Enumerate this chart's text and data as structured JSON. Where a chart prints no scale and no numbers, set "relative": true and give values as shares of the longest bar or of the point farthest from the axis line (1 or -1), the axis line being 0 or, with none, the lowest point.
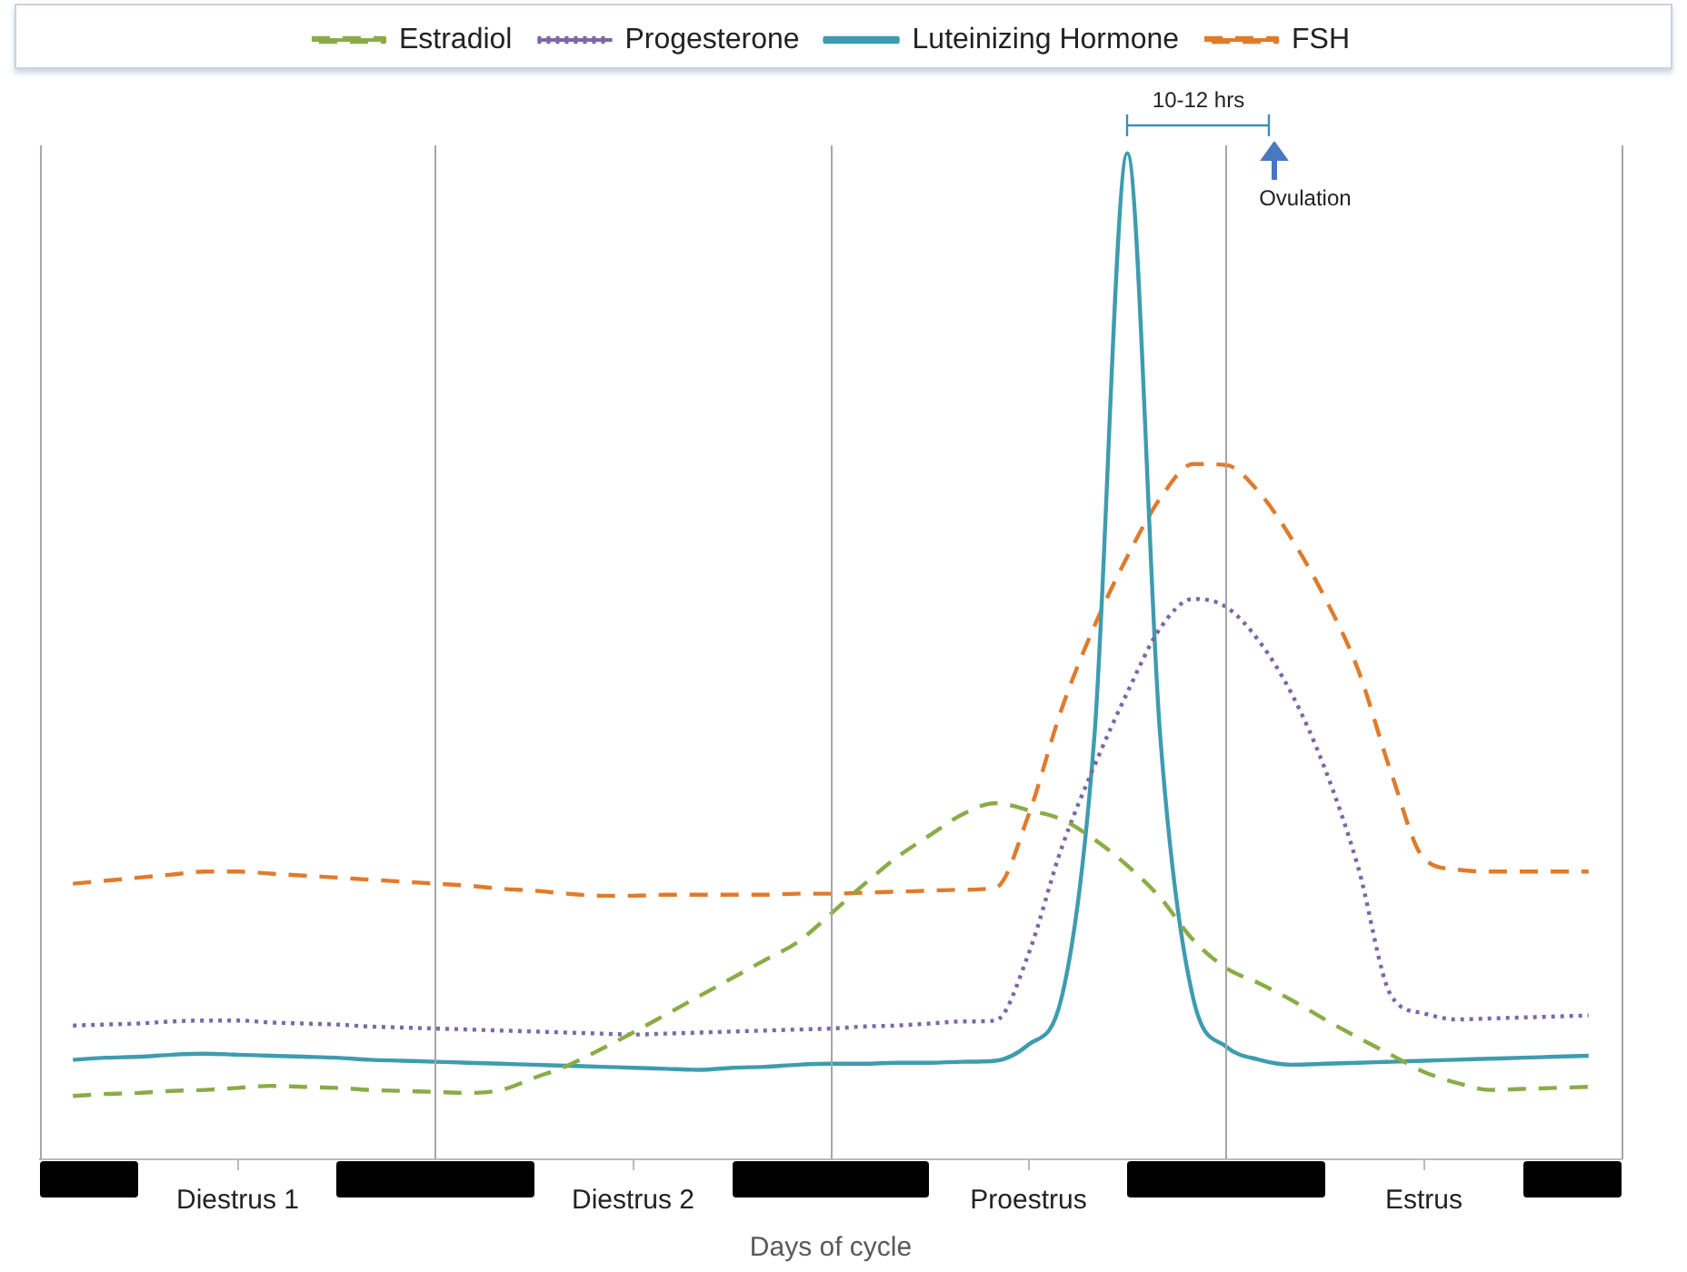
{
  "chart_data": {
    "type": "line",
    "relative": true,
    "xlabel": "Days of cycle",
    "legend": "top",
    "grid": false,
    "categories": [
      null,
      null,
      null,
      null,
      null,
      null,
      "Diestrus 1",
      null,
      null,
      null,
      null,
      null,
      null,
      null,
      null,
      null,
      null,
      null,
      "Diestrus 2",
      null,
      null,
      null,
      null,
      null,
      null,
      null,
      null,
      null,
      null,
      null,
      "Proestrus",
      null,
      null,
      null,
      null,
      null,
      null,
      null,
      null,
      null,
      null,
      null,
      "Estrus",
      null,
      null,
      null,
      null,
      null,
      null
    ],
    "annotations": [
      "10-12 hrs",
      "Ovulation"
    ],
    "series": [
      {
        "name": "Estradiol",
        "color": "#8aac46",
        "line_style": "dashed",
        "values": [
          null,
          0.063,
          0.065,
          0.066,
          0.068,
          0.069,
          0.071,
          0.073,
          0.072,
          0.071,
          0.069,
          0.068,
          0.067,
          0.066,
          0.069,
          0.081,
          0.093,
          0.109,
          0.126,
          0.144,
          0.162,
          0.18,
          0.198,
          0.216,
          0.244,
          0.273,
          0.3,
          0.322,
          0.343,
          0.354,
          0.347,
          0.338,
          0.318,
          0.292,
          0.26,
          0.218,
          0.19,
          0.175,
          0.158,
          0.139,
          0.121,
          0.104,
          0.087,
          0.076,
          0.069,
          0.07,
          0.071,
          0.072,
          null
        ]
      },
      {
        "name": "Progesterone",
        "color": "#7b68a6",
        "line_style": "dotted",
        "values": [
          null,
          0.133,
          0.134,
          0.135,
          0.137,
          0.138,
          0.138,
          0.136,
          0.135,
          0.134,
          0.132,
          0.131,
          0.13,
          0.129,
          0.128,
          0.127,
          0.126,
          0.125,
          0.124,
          0.125,
          0.126,
          0.127,
          0.128,
          0.129,
          0.13,
          0.132,
          0.133,
          0.135,
          0.137,
          0.138,
          0.204,
          0.309,
          0.391,
          0.464,
          0.528,
          0.557,
          0.549,
          0.515,
          0.462,
          0.388,
          0.291,
          0.163,
          0.145,
          0.139,
          0.14,
          0.141,
          0.142,
          0.143,
          null
        ]
      },
      {
        "name": "Luteinizing Hormone",
        "color": "#3e9cb0",
        "line_style": "solid",
        "values": [
          null,
          0.099,
          0.101,
          0.102,
          0.104,
          0.105,
          0.104,
          0.103,
          0.102,
          0.101,
          0.099,
          0.098,
          0.097,
          0.096,
          0.095,
          0.094,
          0.093,
          0.092,
          0.091,
          0.09,
          0.089,
          0.091,
          0.092,
          0.094,
          0.095,
          0.095,
          0.096,
          0.096,
          0.097,
          0.098,
          0.114,
          0.16,
          0.42,
          1,
          0.42,
          0.16,
          0.112,
          0.099,
          0.094,
          0.095,
          0.096,
          0.097,
          0.098,
          0.099,
          0.1,
          0.101,
          0.102,
          0.103,
          null
        ]
      },
      {
        "name": "FSH",
        "color": "#e07b2c",
        "line_style": "dashed",
        "values": [
          null,
          0.274,
          0.277,
          0.28,
          0.283,
          0.286,
          0.286,
          0.284,
          0.282,
          0.28,
          0.278,
          0.276,
          0.274,
          0.272,
          0.269,
          0.267,
          0.264,
          0.262,
          0.262,
          0.263,
          0.263,
          0.263,
          0.263,
          0.264,
          0.264,
          0.265,
          0.266,
          0.267,
          0.268,
          0.27,
          0.342,
          0.447,
          0.53,
          0.599,
          0.657,
          0.691,
          0.69,
          0.663,
          0.616,
          0.558,
          0.487,
          0.385,
          0.299,
          0.288,
          0.286,
          0.286,
          0.286,
          0.286,
          null
        ]
      }
    ]
  }
}
